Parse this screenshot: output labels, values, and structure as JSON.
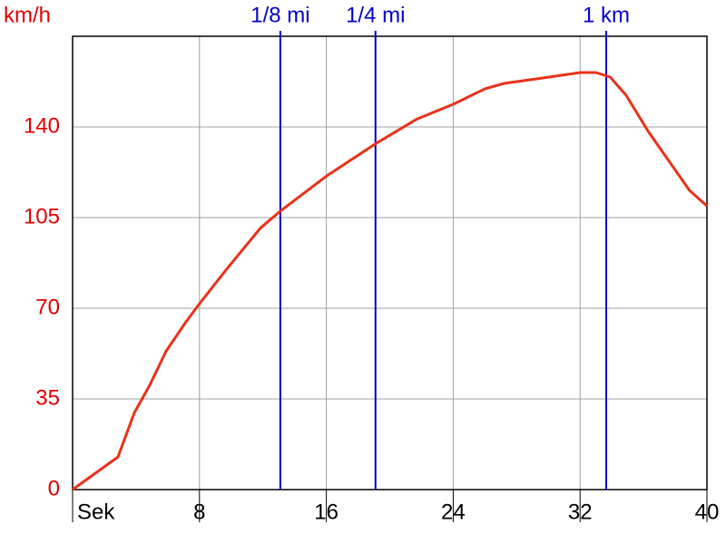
{
  "chart_data": {
    "type": "line",
    "y_label": "km/h",
    "x": [
      0,
      2.86,
      3.9,
      4.86,
      5.9,
      7.15,
      8,
      9.7,
      11.85,
      13.1,
      16,
      19.1,
      21.7,
      24,
      26,
      27.2,
      29.75,
      32,
      33,
      33.9,
      34.9,
      36.3,
      38.9,
      40
    ],
    "series": [
      {
        "color": "#e8321a",
        "values": [
          0,
          12.6,
          29.75,
          40.25,
          53.5,
          64.75,
          71.75,
          85,
          101,
          107.5,
          121,
          133.5,
          143,
          148.75,
          154.7,
          156.8,
          159,
          161,
          161,
          159.25,
          152.25,
          138.25,
          115.5,
          109.5
        ]
      }
    ],
    "xlim": [
      0,
      40
    ],
    "ylim": [
      0,
      175
    ],
    "xticks": [
      {
        "value": 0,
        "label": "Sek"
      },
      8,
      16,
      24,
      32,
      40
    ],
    "yticks": [
      0,
      35,
      70,
      105,
      140
    ],
    "grid": true,
    "marker_color": "#0000c8",
    "axis_label_color": "#e00000",
    "markers": [
      {
        "label": "1/8 mi",
        "x": 13.1
      },
      {
        "label": "1/4 mi",
        "x": 19.1
      },
      {
        "label": "1 km",
        "x": 33.65
      }
    ]
  }
}
